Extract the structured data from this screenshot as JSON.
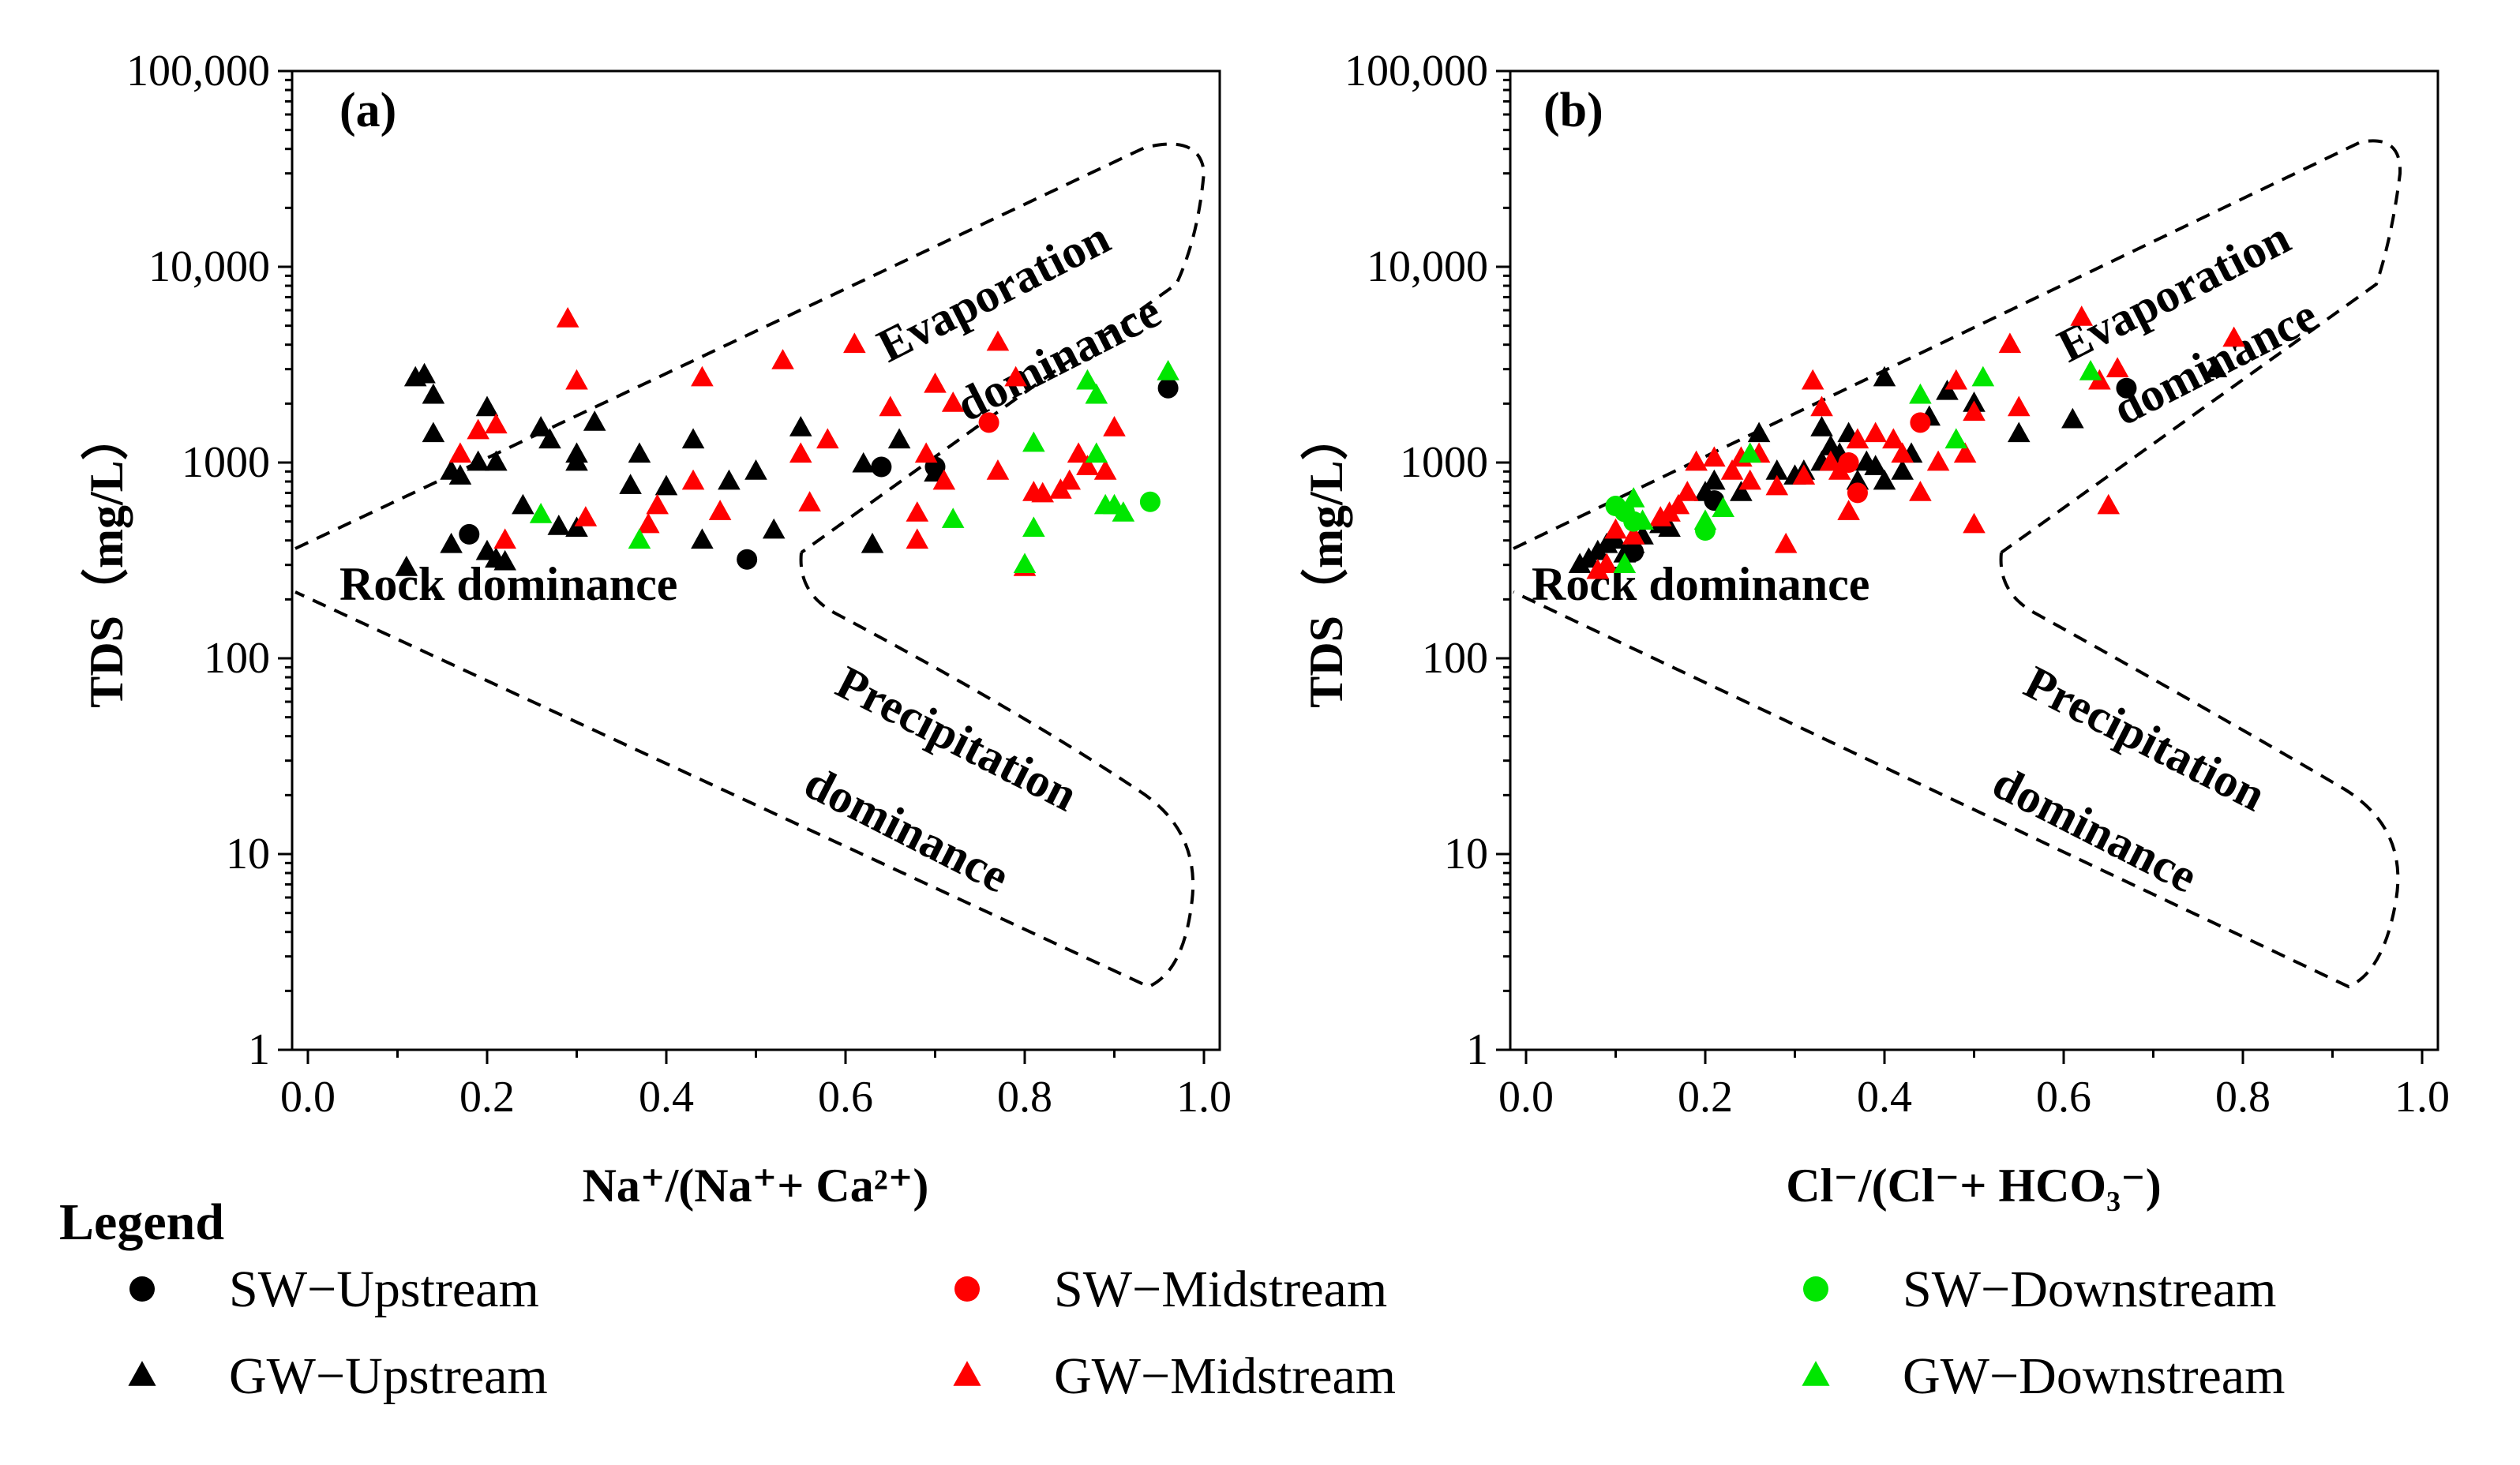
{
  "chart_data": [
    {
      "type": "scatter",
      "panel_label": "(a)",
      "xlabel": "Na⁺/(Na⁺+ Ca²⁺)",
      "ylabel": "TDS（mg/L）",
      "xlim": [
        0,
        1.0
      ],
      "ylim": [
        1,
        100000
      ],
      "yscale": "log",
      "x_ticks": [
        "0.0",
        "0.2",
        "0.4",
        "0.6",
        "0.8",
        "1.0"
      ],
      "y_ticks": [
        "1",
        "10",
        "100",
        "1000",
        "10,000",
        "100,000"
      ],
      "regions": [
        "Evaporation",
        "dominance",
        "Rock dominance",
        "Precipitation",
        "dominance"
      ],
      "series": [
        {
          "name": "SW−Upstream",
          "marker": "circle",
          "color": "#000000",
          "points": [
            [
              0.18,
              430
            ],
            [
              0.49,
              320
            ],
            [
              0.64,
              950
            ],
            [
              0.7,
              950
            ],
            [
              0.96,
              2400
            ]
          ]
        },
        {
          "name": "GW−Upstream",
          "marker": "triangle",
          "color": "#000000",
          "points": [
            [
              0.12,
              2700
            ],
            [
              0.13,
              2800
            ],
            [
              0.14,
              2200
            ],
            [
              0.14,
              1400
            ],
            [
              0.16,
              900
            ],
            [
              0.17,
              850
            ],
            [
              0.19,
              1000
            ],
            [
              0.2,
              1900
            ],
            [
              0.21,
              1000
            ],
            [
              0.11,
              290
            ],
            [
              0.16,
              380
            ],
            [
              0.2,
              350
            ],
            [
              0.21,
              320
            ],
            [
              0.22,
              310
            ],
            [
              0.24,
              600
            ],
            [
              0.26,
              1500
            ],
            [
              0.27,
              1300
            ],
            [
              0.28,
              470
            ],
            [
              0.3,
              1100
            ],
            [
              0.3,
              1000
            ],
            [
              0.3,
              460
            ],
            [
              0.32,
              1600
            ],
            [
              0.36,
              760
            ],
            [
              0.37,
              1100
            ],
            [
              0.4,
              750
            ],
            [
              0.43,
              1300
            ],
            [
              0.44,
              400
            ],
            [
              0.47,
              800
            ],
            [
              0.5,
              900
            ],
            [
              0.52,
              450
            ],
            [
              0.55,
              1500
            ],
            [
              0.62,
              980
            ],
            [
              0.63,
              380
            ],
            [
              0.66,
              1300
            ],
            [
              0.7,
              880
            ]
          ]
        },
        {
          "name": "SW−Midstream",
          "marker": "circle",
          "color": "#ff0000",
          "points": [
            [
              0.76,
              1600
            ]
          ]
        },
        {
          "name": "GW−Midstream",
          "marker": "triangle",
          "color": "#ff0000",
          "points": [
            [
              0.29,
              5400
            ],
            [
              0.3,
              2600
            ],
            [
              0.31,
              520
            ],
            [
              0.17,
              1100
            ],
            [
              0.19,
              1450
            ],
            [
              0.21,
              1550
            ],
            [
              0.22,
              400
            ],
            [
              0.38,
              480
            ],
            [
              0.39,
              600
            ],
            [
              0.43,
              800
            ],
            [
              0.44,
              2700
            ],
            [
              0.46,
              560
            ],
            [
              0.53,
              3300
            ],
            [
              0.55,
              1100
            ],
            [
              0.56,
              620
            ],
            [
              0.58,
              1300
            ],
            [
              0.61,
              4000
            ],
            [
              0.65,
              1900
            ],
            [
              0.68,
              400
            ],
            [
              0.68,
              550
            ],
            [
              0.69,
              1100
            ],
            [
              0.7,
              2500
            ],
            [
              0.71,
              800
            ],
            [
              0.72,
              2000
            ],
            [
              0.77,
              4100
            ],
            [
              0.77,
              900
            ],
            [
              0.79,
              2700
            ],
            [
              0.8,
              290
            ],
            [
              0.81,
              700
            ],
            [
              0.82,
              690
            ],
            [
              0.84,
              720
            ],
            [
              0.85,
              800
            ],
            [
              0.86,
              1100
            ],
            [
              0.87,
              950
            ],
            [
              0.89,
              900
            ],
            [
              0.9,
              1500
            ]
          ]
        },
        {
          "name": "SW−Downstream",
          "marker": "circle",
          "color": "#00e600",
          "points": [
            [
              0.94,
              630
            ]
          ]
        },
        {
          "name": "GW−Downstream",
          "marker": "triangle",
          "color": "#00e600",
          "points": [
            [
              0.26,
              540
            ],
            [
              0.37,
              400
            ],
            [
              0.72,
              510
            ],
            [
              0.8,
              300
            ],
            [
              0.81,
              460
            ],
            [
              0.81,
              1250
            ],
            [
              0.87,
              2600
            ],
            [
              0.88,
              2200
            ],
            [
              0.88,
              1100
            ],
            [
              0.89,
              600
            ],
            [
              0.9,
              600
            ],
            [
              0.91,
              550
            ],
            [
              0.96,
              2900
            ]
          ]
        }
      ]
    },
    {
      "type": "scatter",
      "panel_label": "(b)",
      "xlabel": "Cl⁻/(Cl⁻+ HCO₃⁻)",
      "ylabel": "TDS（mg/L）",
      "xlim": [
        0,
        1.0
      ],
      "ylim": [
        1,
        100000
      ],
      "yscale": "log",
      "x_ticks": [
        "0.0",
        "0.2",
        "0.4",
        "0.6",
        "0.8",
        "1.0"
      ],
      "y_ticks": [
        "1",
        "10",
        "100",
        "1000",
        "10,000",
        "100,000"
      ],
      "regions": [
        "Evaporation",
        "dominance",
        "Rock dominance",
        "Precipitation",
        "dominance"
      ],
      "series": [
        {
          "name": "SW−Upstream",
          "marker": "circle",
          "color": "#000000",
          "points": [
            [
              0.12,
              350
            ],
            [
              0.21,
              640
            ],
            [
              0.35,
              1000
            ],
            [
              0.67,
              2400
            ]
          ]
        },
        {
          "name": "GW−Upstream",
          "marker": "triangle",
          "color": "#000000",
          "points": [
            [
              0.06,
              300
            ],
            [
              0.07,
              320
            ],
            [
              0.08,
              350
            ],
            [
              0.09,
              380
            ],
            [
              0.1,
              400
            ],
            [
              0.11,
              340
            ],
            [
              0.12,
              380
            ],
            [
              0.13,
              420
            ],
            [
              0.15,
              480
            ],
            [
              0.16,
              460
            ],
            [
              0.2,
              700
            ],
            [
              0.21,
              800
            ],
            [
              0.24,
              700
            ],
            [
              0.26,
              1400
            ],
            [
              0.28,
              900
            ],
            [
              0.3,
              850
            ],
            [
              0.31,
              900
            ],
            [
              0.33,
              1000
            ],
            [
              0.33,
              1500
            ],
            [
              0.34,
              1200
            ],
            [
              0.35,
              1100
            ],
            [
              0.36,
              1400
            ],
            [
              0.37,
              800
            ],
            [
              0.38,
              1000
            ],
            [
              0.39,
              950
            ],
            [
              0.4,
              800
            ],
            [
              0.4,
              2700
            ],
            [
              0.42,
              900
            ],
            [
              0.43,
              1100
            ],
            [
              0.45,
              1700
            ],
            [
              0.47,
              2300
            ],
            [
              0.5,
              2000
            ],
            [
              0.55,
              1400
            ],
            [
              0.61,
              1650
            ],
            [
              0.77,
              3000
            ]
          ]
        },
        {
          "name": "SW−Midstream",
          "marker": "circle",
          "color": "#ff0000",
          "points": [
            [
              0.36,
              1000
            ],
            [
              0.37,
              700
            ],
            [
              0.44,
              1600
            ]
          ]
        },
        {
          "name": "GW−Midstream",
          "marker": "triangle",
          "color": "#ff0000",
          "points": [
            [
              0.08,
              280
            ],
            [
              0.09,
              300
            ],
            [
              0.1,
              450
            ],
            [
              0.12,
              420
            ],
            [
              0.15,
              520
            ],
            [
              0.16,
              550
            ],
            [
              0.17,
              600
            ],
            [
              0.18,
              700
            ],
            [
              0.19,
              1000
            ],
            [
              0.21,
              1050
            ],
            [
              0.23,
              900
            ],
            [
              0.24,
              1050
            ],
            [
              0.25,
              800
            ],
            [
              0.26,
              1100
            ],
            [
              0.28,
              750
            ],
            [
              0.29,
              380
            ],
            [
              0.31,
              850
            ],
            [
              0.32,
              2600
            ],
            [
              0.33,
              1900
            ],
            [
              0.34,
              1000
            ],
            [
              0.35,
              900
            ],
            [
              0.36,
              560
            ],
            [
              0.37,
              1300
            ],
            [
              0.39,
              1400
            ],
            [
              0.41,
              1300
            ],
            [
              0.42,
              1100
            ],
            [
              0.44,
              700
            ],
            [
              0.46,
              1000
            ],
            [
              0.48,
              2600
            ],
            [
              0.49,
              1100
            ],
            [
              0.5,
              1800
            ],
            [
              0.5,
              480
            ],
            [
              0.54,
              4000
            ],
            [
              0.55,
              1900
            ],
            [
              0.62,
              5500
            ],
            [
              0.64,
              2600
            ],
            [
              0.65,
              600
            ],
            [
              0.66,
              3000
            ],
            [
              0.79,
              4300
            ]
          ]
        },
        {
          "name": "SW−Downstream",
          "marker": "circle",
          "color": "#00e600",
          "points": [
            [
              0.1,
              600
            ],
            [
              0.11,
              560
            ],
            [
              0.12,
              500
            ],
            [
              0.2,
              450
            ]
          ]
        },
        {
          "name": "GW−Downstream",
          "marker": "triangle",
          "color": "#00e600",
          "points": [
            [
              0.11,
              300
            ],
            [
              0.12,
              650
            ],
            [
              0.13,
              500
            ],
            [
              0.2,
              500
            ],
            [
              0.22,
              580
            ],
            [
              0.25,
              1100
            ],
            [
              0.44,
              2200
            ],
            [
              0.48,
              1300
            ],
            [
              0.51,
              2700
            ],
            [
              0.63,
              2900
            ]
          ]
        }
      ]
    }
  ],
  "legend": {
    "title": "Legend",
    "items": [
      "SW−Upstream",
      "SW−Midstream",
      "SW−Downstream",
      "GW−Upstream",
      "GW−Midstream",
      "GW−Downstream"
    ]
  }
}
